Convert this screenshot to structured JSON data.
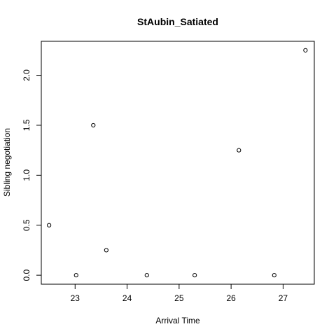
{
  "chart_data": {
    "type": "scatter",
    "title": "StAubin_Satiated",
    "xlabel": "Arrival Time",
    "ylabel": "Sibling negotiation",
    "xlim": [
      22.35,
      27.6
    ],
    "ylim": [
      -0.09,
      2.34
    ],
    "xticks": [
      23,
      24,
      25,
      26,
      27
    ],
    "yticks": [
      0.0,
      0.5,
      1.0,
      1.5,
      2.0
    ],
    "xtick_labels": [
      "23",
      "24",
      "25",
      "26",
      "27"
    ],
    "ytick_labels": [
      "0.0",
      "0.5",
      "1.0",
      "1.5",
      "2.0"
    ],
    "grid": false,
    "points": [
      {
        "x": 22.5,
        "y": 0.5
      },
      {
        "x": 23.02,
        "y": 0.0
      },
      {
        "x": 23.35,
        "y": 1.5
      },
      {
        "x": 23.6,
        "y": 0.25
      },
      {
        "x": 24.38,
        "y": 0.0
      },
      {
        "x": 25.3,
        "y": 0.0
      },
      {
        "x": 26.15,
        "y": 1.25
      },
      {
        "x": 26.83,
        "y": 0.0
      },
      {
        "x": 27.43,
        "y": 2.25
      }
    ]
  }
}
